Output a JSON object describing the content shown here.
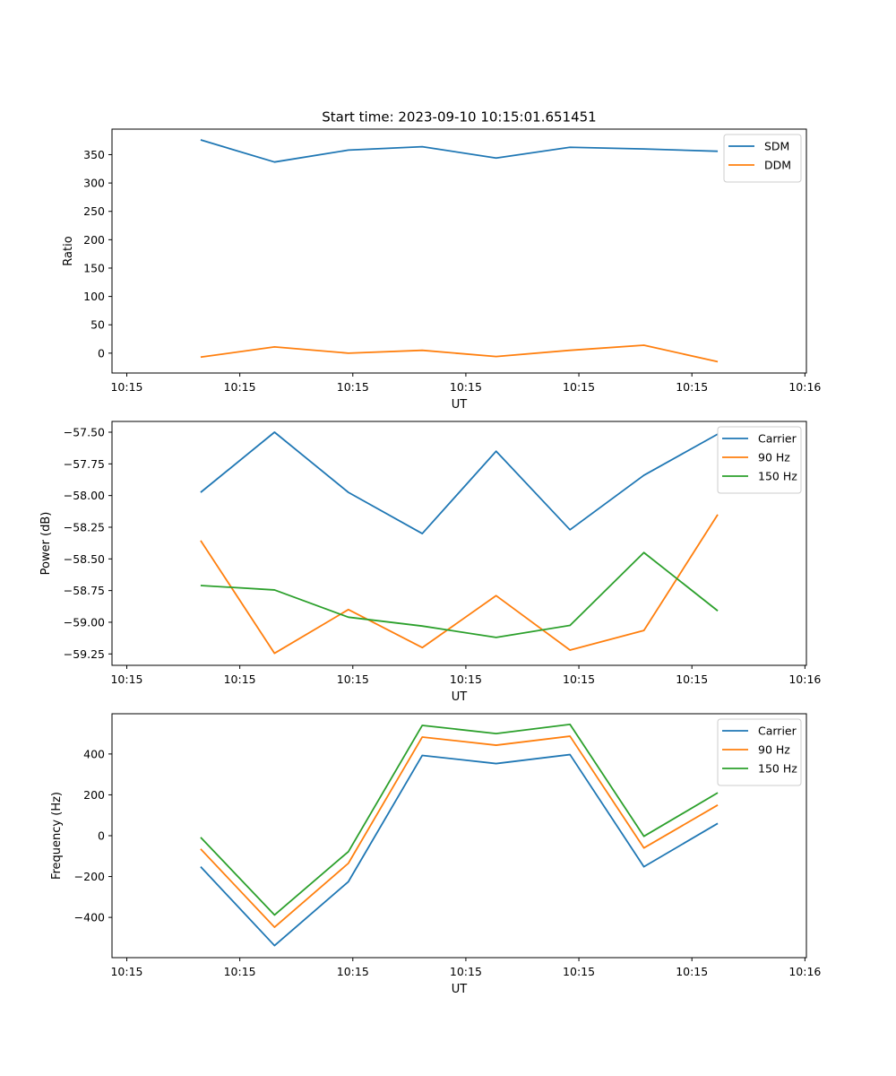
{
  "figure_title": "Start time: 2023-09-10 10:15:01.651451",
  "colors": {
    "blue": "#1f77b4",
    "orange": "#ff7f0e",
    "green": "#2ca02c"
  },
  "chart_data": [
    {
      "type": "line",
      "xlabel": "UT",
      "ylabel": "Ratio",
      "x_index": [
        1,
        2,
        3,
        4,
        5,
        6,
        7,
        8
      ],
      "xlim": [
        -0.2,
        9.2
      ],
      "x_ticks": [
        0,
        1.53,
        3.06,
        4.59,
        6.12,
        7.65,
        9.18
      ],
      "x_tick_labels": [
        "10:15",
        "10:15",
        "10:15",
        "10:15",
        "10:15",
        "10:15",
        "10:16"
      ],
      "ylim": [
        -35,
        395
      ],
      "y_ticks": [
        0,
        50,
        100,
        150,
        200,
        250,
        300,
        350
      ],
      "y_tick_labels": [
        "0",
        "50",
        "100",
        "150",
        "200",
        "250",
        "300",
        "350"
      ],
      "legend": "top-right",
      "series": [
        {
          "name": "SDM",
          "color": "#1f77b4",
          "values": [
            376,
            337,
            358,
            364,
            344,
            363,
            360,
            356
          ]
        },
        {
          "name": "DDM",
          "color": "#ff7f0e",
          "values": [
            -7,
            11,
            0,
            5,
            -6,
            5,
            14,
            -15
          ]
        }
      ]
    },
    {
      "type": "line",
      "xlabel": "UT",
      "ylabel": "Power (dB)",
      "x_index": [
        1,
        2,
        3,
        4,
        5,
        6,
        7,
        8
      ],
      "xlim": [
        -0.2,
        9.2
      ],
      "x_ticks": [
        0,
        1.53,
        3.06,
        4.59,
        6.12,
        7.65,
        9.18
      ],
      "x_tick_labels": [
        "10:15",
        "10:15",
        "10:15",
        "10:15",
        "10:15",
        "10:15",
        "10:16"
      ],
      "ylim": [
        -59.34,
        -57.415
      ],
      "y_ticks": [
        -57.5,
        -57.75,
        -58.0,
        -58.25,
        -58.5,
        -58.75,
        -59.0,
        -59.25
      ],
      "y_tick_labels": [
        "−57.50",
        "−57.75",
        "−58.00",
        "−58.25",
        "−58.50",
        "−58.75",
        "−59.00",
        "−59.25"
      ],
      "legend": "top-right",
      "series": [
        {
          "name": "Carrier",
          "color": "#1f77b4",
          "values": [
            -57.975,
            -57.5,
            -57.975,
            -58.3,
            -57.65,
            -58.27,
            -57.84,
            -57.515
          ]
        },
        {
          "name": "90 Hz",
          "color": "#ff7f0e",
          "values": [
            -58.355,
            -59.245,
            -58.9,
            -59.2,
            -58.79,
            -59.22,
            -59.065,
            -58.15
          ]
        },
        {
          "name": "150 Hz",
          "color": "#2ca02c",
          "values": [
            -58.71,
            -58.745,
            -58.96,
            -59.03,
            -59.12,
            -59.025,
            -58.45,
            -58.91
          ]
        }
      ]
    },
    {
      "type": "line",
      "xlabel": "UT",
      "ylabel": "Frequency (Hz)",
      "x_index": [
        1,
        2,
        3,
        4,
        5,
        6,
        7,
        8
      ],
      "xlim": [
        -0.2,
        9.2
      ],
      "x_ticks": [
        0,
        1.53,
        3.06,
        4.59,
        6.12,
        7.65,
        9.18
      ],
      "x_tick_labels": [
        "10:15",
        "10:15",
        "10:15",
        "10:15",
        "10:15",
        "10:15",
        "10:16"
      ],
      "ylim": [
        -597,
        597
      ],
      "y_ticks": [
        400,
        200,
        0,
        -200,
        -400
      ],
      "y_tick_labels": [
        "400",
        "200",
        "0",
        "−200",
        "−400"
      ],
      "legend": "top-right",
      "series": [
        {
          "name": "Carrier",
          "color": "#1f77b4",
          "values": [
            -152,
            -538,
            -225,
            393,
            353,
            397,
            -152,
            60
          ]
        },
        {
          "name": "90 Hz",
          "color": "#ff7f0e",
          "values": [
            -65,
            -448,
            -135,
            483,
            443,
            487,
            -60,
            150
          ]
        },
        {
          "name": "150 Hz",
          "color": "#2ca02c",
          "values": [
            -8,
            -388,
            -78,
            540,
            500,
            545,
            -3,
            210
          ]
        }
      ]
    }
  ]
}
